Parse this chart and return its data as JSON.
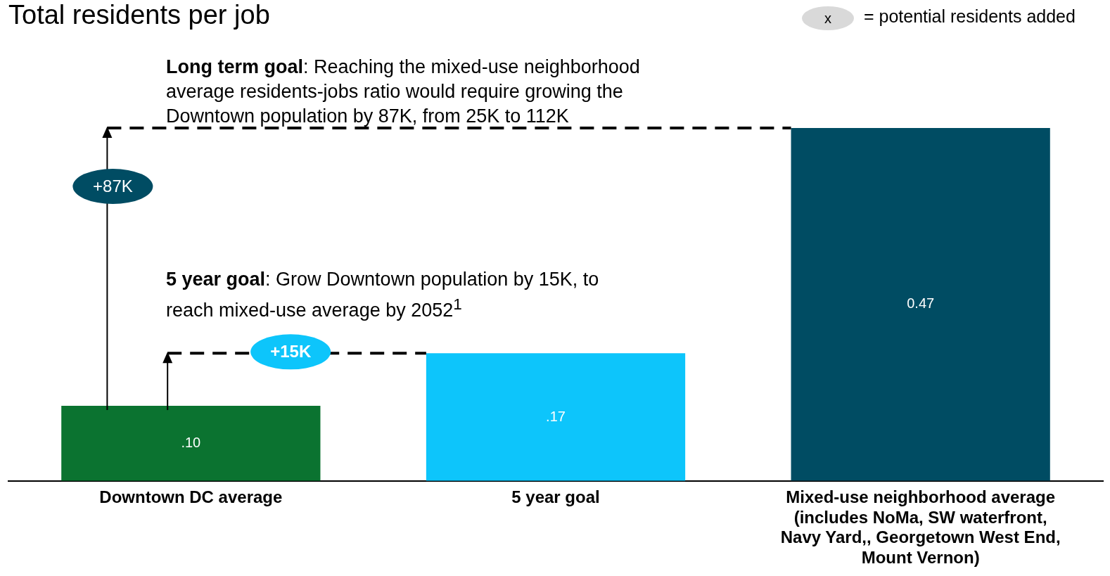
{
  "chart_data": {
    "type": "bar",
    "title": "Total residents per job",
    "categories": [
      "Downtown DC average",
      "5 year goal",
      "Mixed-use neighborhood average (includes NoMa, SW waterfront, Navy Yard,, Georgetown West End, Mount Vernon)"
    ],
    "values": [
      0.1,
      0.17,
      0.47
    ],
    "colors": [
      "#0b7330",
      "#0dc5fb",
      "#004c63"
    ],
    "value_labels": [
      ".10",
      ".17",
      "0.47"
    ],
    "ref_lines": [
      {
        "axis": "y",
        "value": 0.47,
        "line_style": "dashed",
        "color": "#000000"
      },
      {
        "axis": "y",
        "value": 0.17,
        "line_style": "dashed",
        "color": "#000000"
      }
    ],
    "annotations": [
      "x",
      "= potential residents added",
      "Long term goal: Reaching the mixed-use neighborhood average residents-jobs ratio would require growing the Downtown population by 87K, from 25K to 112K",
      "5 year goal: Grow Downtown population by 15K, to reach mixed-use average by 2052$^{1}$",
      "+87K",
      "+15K"
    ],
    "grid": false,
    "legend": false
  }
}
